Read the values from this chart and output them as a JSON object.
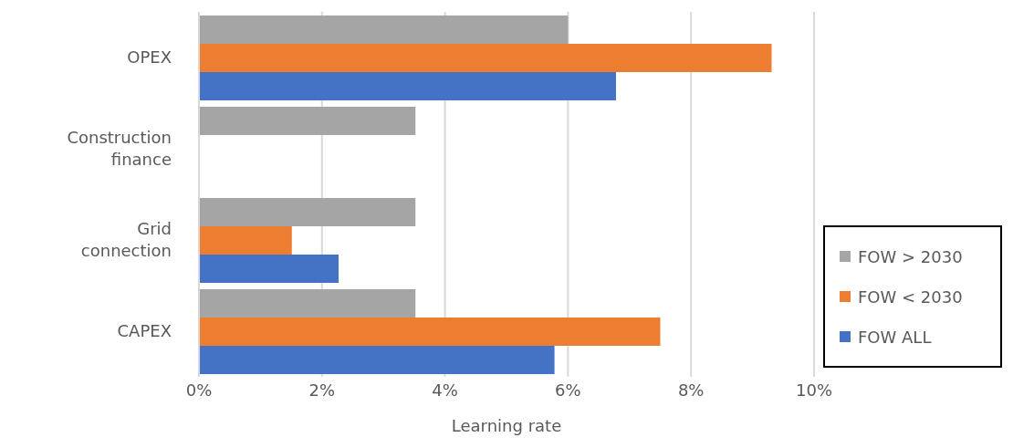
{
  "chart_data": {
    "type": "bar",
    "orientation": "horizontal",
    "xlabel": "Learning rate",
    "categories": [
      "OPEX",
      "Construction finance",
      "Grid connection",
      "CAPEX"
    ],
    "series": [
      {
        "name": "FOW > 2030",
        "color": "#a5a5a5",
        "values": [
          6.0,
          3.52,
          3.52,
          3.52
        ]
      },
      {
        "name": "FOW < 2030",
        "color": "#ed7d31",
        "values": [
          9.31,
          0,
          1.51,
          7.5
        ]
      },
      {
        "name": "FOW ALL",
        "color": "#4472c4",
        "values": [
          6.78,
          0,
          2.27,
          5.78
        ]
      }
    ],
    "xlim": [
      0,
      10
    ],
    "xticks": [
      {
        "value": 0,
        "label": "0%"
      },
      {
        "value": 2,
        "label": "2%"
      },
      {
        "value": 4,
        "label": "4%"
      },
      {
        "value": 6,
        "label": "6%"
      },
      {
        "value": 8,
        "label": "8%"
      },
      {
        "value": 10,
        "label": "10%"
      }
    ],
    "grid": "x",
    "legend": "bottom right"
  }
}
